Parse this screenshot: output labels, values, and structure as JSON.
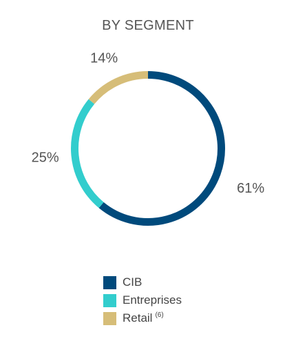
{
  "chart_data": {
    "type": "pie",
    "variant": "donut",
    "title": "BY SEGMENT",
    "categories": [
      "CIB",
      "Entreprises",
      "Retail"
    ],
    "values": [
      61,
      25,
      14
    ],
    "value_labels": [
      "61%",
      "25%",
      "14%"
    ],
    "colors": [
      "#004a7c",
      "#32cdcd",
      "#d6bd78"
    ],
    "legend_position": "bottom",
    "legend": [
      {
        "label": "CIB",
        "note": "",
        "color": "#004a7c"
      },
      {
        "label": "Entreprises",
        "note": "",
        "color": "#32cdcd"
      },
      {
        "label": "Retail",
        "note": "(6)",
        "color": "#d6bd78"
      }
    ]
  }
}
